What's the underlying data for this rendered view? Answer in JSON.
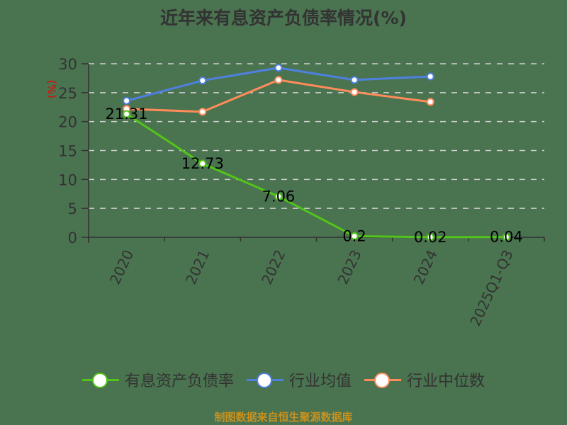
{
  "title": "近年来有息资产负债率情况(%)",
  "y_unit_label": "(%)",
  "source": "制图数据来自恒生聚源数据库",
  "legend": [
    {
      "label": "有息资产负债率",
      "color": "#52c41a"
    },
    {
      "label": "行业均值",
      "color": "#4e80e0"
    },
    {
      "label": "行业中位数",
      "color": "#ff8c5a"
    }
  ],
  "chart_data": {
    "type": "line",
    "title": "近年来有息资产负债率情况(%)",
    "xlabel": "",
    "ylabel": "(%)",
    "x": [
      "2020",
      "2021",
      "2022",
      "2023",
      "2024",
      "2025Q1-Q3"
    ],
    "ylim": [
      0,
      30
    ],
    "yticks": [
      0,
      5,
      10,
      15,
      20,
      25,
      30
    ],
    "grid": true,
    "legend_position": "bottom",
    "series": [
      {
        "name": "有息资产负债率",
        "color": "#52c41a",
        "values": [
          21.31,
          12.73,
          7.06,
          0.2,
          0.02,
          0.04
        ],
        "labels_shown": true
      },
      {
        "name": "行业均值",
        "color": "#4e80e0",
        "values": [
          23.6,
          27.1,
          29.3,
          27.2,
          27.8,
          null
        ]
      },
      {
        "name": "行业中位数",
        "color": "#ff8c5a",
        "values": [
          22.2,
          21.7,
          27.2,
          25.1,
          23.4,
          null
        ]
      }
    ]
  }
}
